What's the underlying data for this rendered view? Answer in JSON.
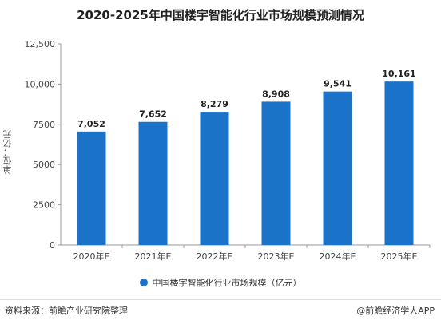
{
  "title": "2020-2025年中国楼宇智能化行业市场规模预测情况",
  "footer": {
    "source": "资料来源：前瞻产业研究院整理",
    "brand": "@前瞻经济学人APP"
  },
  "colors": {
    "bar": "#1a73c8",
    "axis": "#999999"
  },
  "chart_data": {
    "type": "bar",
    "title": "2020-2025年中国楼宇智能化行业市场规模预测情况",
    "ylabel": "单位：亿元",
    "xlabel": "",
    "ylim": [
      0,
      12500
    ],
    "yticks": [
      0,
      2500,
      5000,
      7500,
      10000,
      12500
    ],
    "ytick_labels": [
      "0",
      "2500",
      "5000",
      "7500",
      "10,000",
      "12,500"
    ],
    "categories": [
      "2020年E",
      "2021年E",
      "2022年E",
      "2023年E",
      "2024年E",
      "2025年E"
    ],
    "series": [
      {
        "name": "中国楼宇智能化行业市场规模（亿元）",
        "values": [
          7052,
          7652,
          8279,
          8908,
          9541,
          10161
        ],
        "value_labels": [
          "7,052",
          "7,652",
          "8,279",
          "8,908",
          "9,541",
          "10,161"
        ]
      }
    ],
    "grid": false,
    "legend": "bottom"
  }
}
